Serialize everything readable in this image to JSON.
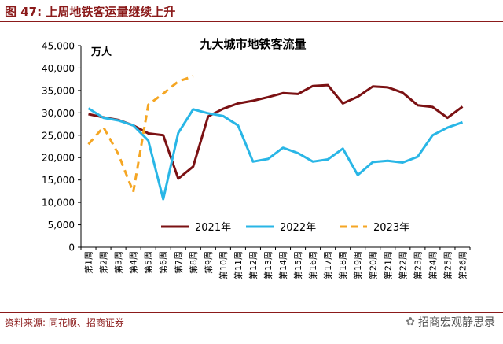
{
  "figure_title": "图 47: 上周地铁客运量继续上升",
  "source_note": "资料来源: 同花顺、招商证券",
  "watermark_text": "招商宏观静思录",
  "chart_data": {
    "type": "line",
    "title": "九大城市地铁客流量",
    "ylabel": "万人",
    "ylim": [
      0,
      45000
    ],
    "yticks": [
      0,
      5000,
      10000,
      15000,
      20000,
      25000,
      30000,
      35000,
      40000,
      45000
    ],
    "ytick_labels": [
      "0",
      "5,000",
      "10,000",
      "15,000",
      "20,000",
      "25,000",
      "30,000",
      "35,000",
      "40,000",
      "45,000"
    ],
    "categories": [
      "第1周",
      "第2周",
      "第3周",
      "第4周",
      "第5周",
      "第6周",
      "第7周",
      "第8周",
      "第9周",
      "第10周",
      "第11周",
      "第12周",
      "第13周",
      "第14周",
      "第15周",
      "第16周",
      "第17周",
      "第18周",
      "第19周",
      "第20周",
      "第21周",
      "第22周",
      "第23周",
      "第24周",
      "第25周",
      "第26周"
    ],
    "legend_position": "bottom-right",
    "grid": false,
    "series": [
      {
        "name": "2021年",
        "color": "#7b1113",
        "style": "solid",
        "values": [
          29700,
          29000,
          28400,
          27200,
          25400,
          25000,
          15300,
          18000,
          29200,
          30900,
          32100,
          32700,
          33500,
          34400,
          34200,
          36000,
          36200,
          32100,
          33600,
          35900,
          35700,
          34500,
          31700,
          31300,
          28900,
          31400
        ]
      },
      {
        "name": "2022年",
        "color": "#29b6e6",
        "style": "solid",
        "values": [
          31000,
          28900,
          28300,
          27200,
          23800,
          10700,
          25500,
          30800,
          29900,
          29300,
          27200,
          19100,
          19700,
          22200,
          21000,
          19100,
          19600,
          22000,
          16100,
          19000,
          19300,
          18900,
          20200,
          25000,
          26700,
          27900
        ]
      },
      {
        "name": "2023年",
        "color": "#f5a623",
        "style": "dashed",
        "values": [
          23000,
          26800,
          20800,
          12300,
          31800,
          34300,
          37000,
          38200,
          null,
          null,
          null,
          null,
          null,
          null,
          null,
          null,
          null,
          null,
          null,
          null,
          null,
          null,
          null,
          null,
          null,
          null
        ]
      }
    ]
  }
}
